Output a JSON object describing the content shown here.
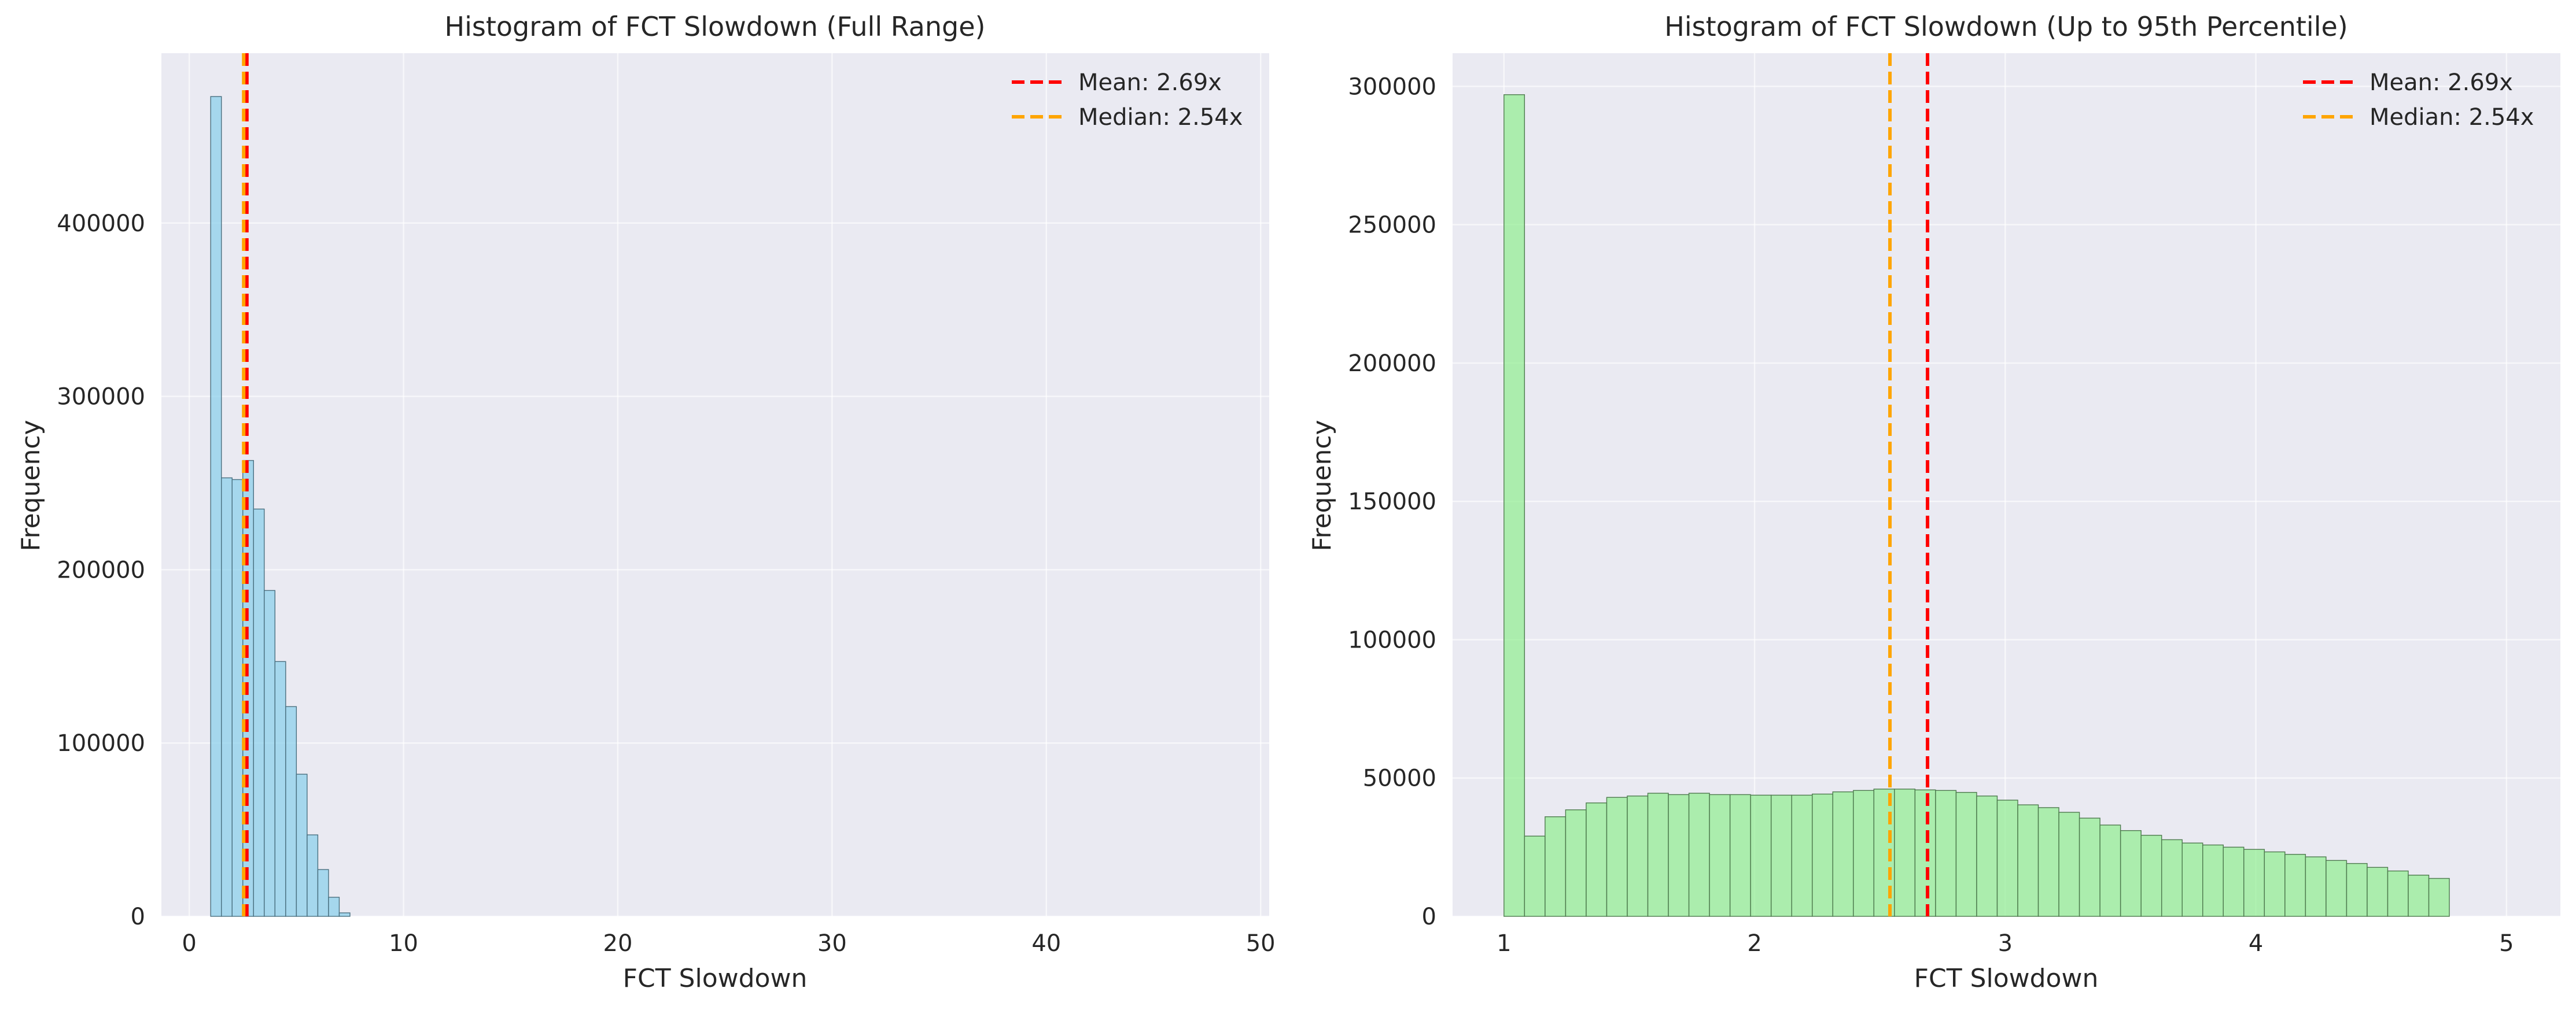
{
  "chart_data": [
    {
      "type": "bar",
      "subtype": "histogram",
      "title": "Histogram of FCT Slowdown (Full Range)",
      "xlabel": "FCT Slowdown",
      "ylabel": "Frequency",
      "xlim": [
        -1.3,
        50.4
      ],
      "ylim": [
        0,
        498000
      ],
      "xticks": [
        0,
        10,
        20,
        30,
        40,
        50
      ],
      "yticks": [
        0,
        100000,
        200000,
        300000,
        400000
      ],
      "bar_color": "#87ceeb",
      "grid": true,
      "legend_position": "upper right",
      "bins": {
        "edges_start": 1.0,
        "bin_width": 0.5,
        "values": [
          473000,
          253000,
          252000,
          263000,
          235000,
          188000,
          147000,
          121000,
          82000,
          47000,
          27000,
          11000,
          2000
        ]
      },
      "lines": [
        {
          "label": "Mean: 2.69x",
          "x": 2.69,
          "color": "#ff0000"
        },
        {
          "label": "Median: 2.54x",
          "x": 2.54,
          "color": "#ffa500"
        }
      ]
    },
    {
      "type": "bar",
      "subtype": "histogram",
      "title": "Histogram of FCT Slowdown (Up to 95th Percentile)",
      "xlabel": "FCT Slowdown",
      "ylabel": "Frequency",
      "xlim": [
        0.795,
        5.215
      ],
      "ylim": [
        0,
        312000
      ],
      "xticks": [
        1,
        2,
        3,
        4,
        5
      ],
      "yticks": [
        0,
        50000,
        100000,
        150000,
        200000,
        250000,
        300000
      ],
      "bar_color": "#90ee90",
      "grid": true,
      "legend_position": "upper right",
      "bins": {
        "edges_start": 1.0,
        "bin_width": 0.082,
        "values": [
          297000,
          29000,
          36000,
          38500,
          41000,
          43000,
          43500,
          44500,
          44000,
          44500,
          44000,
          44000,
          43800,
          43800,
          43800,
          44200,
          45000,
          45500,
          46000,
          46000,
          45700,
          45500,
          44800,
          43500,
          42000,
          40300,
          39300,
          37600,
          35500,
          33000,
          31000,
          29300,
          27700,
          26500,
          25800,
          25000,
          24200,
          23300,
          22400,
          21500,
          20200,
          19100,
          17700,
          16400,
          14900,
          13700
        ]
      },
      "lines": [
        {
          "label": "Mean: 2.69x",
          "x": 2.69,
          "color": "#ff0000"
        },
        {
          "label": "Median: 2.54x",
          "x": 2.54,
          "color": "#ffa500"
        }
      ]
    }
  ]
}
